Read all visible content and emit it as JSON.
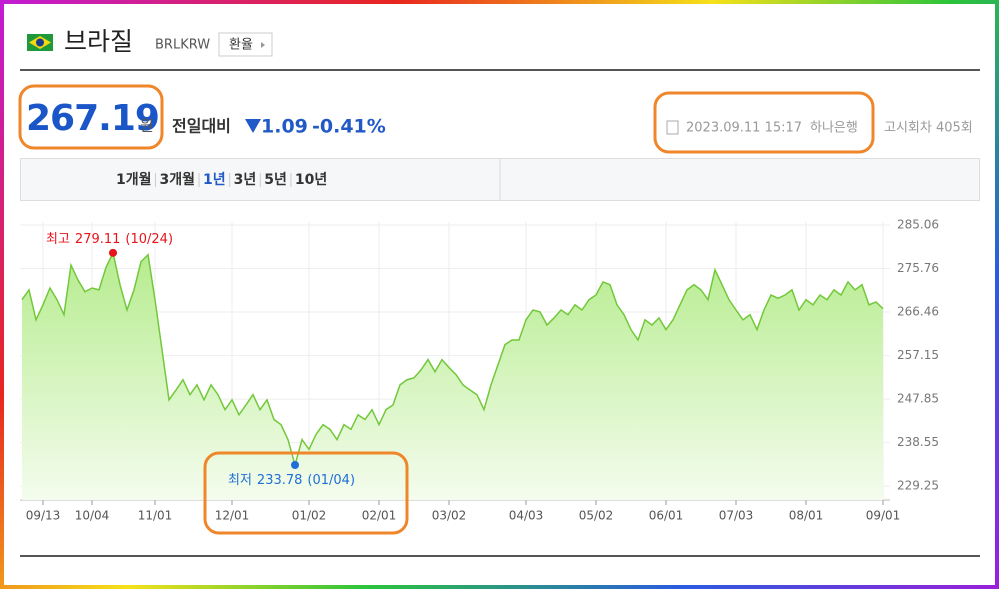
{
  "header": {
    "title": "브라질",
    "code": "BRLKRW",
    "button": "환율"
  },
  "quote": {
    "price": "267.19",
    "unit": "원",
    "compare_label": "전일대비",
    "change": "1.09",
    "change_pct": "-0.41%",
    "date": "2023.09.11 15:17",
    "bank": "하나은행",
    "round": "고시회차 405회"
  },
  "tabs": {
    "items": [
      "1개월",
      "3개월",
      "1년",
      "3년",
      "5년",
      "10년"
    ],
    "selected": 2
  },
  "chart_data": {
    "type": "line",
    "categories": [
      null,
      null,
      null,
      "09/13",
      null,
      null,
      null,
      null,
      null,
      null,
      "10/04",
      null,
      null,
      null,
      null,
      null,
      null,
      null,
      null,
      "11/01",
      null,
      null,
      null,
      null,
      null,
      null,
      null,
      null,
      null,
      null,
      "12/01",
      null,
      null,
      null,
      null,
      null,
      null,
      null,
      null,
      null,
      null,
      "01/02",
      null,
      null,
      null,
      null,
      null,
      null,
      null,
      null,
      null,
      "02/01",
      null,
      null,
      null,
      null,
      null,
      null,
      null,
      null,
      null,
      "03/02",
      null,
      null,
      null,
      null,
      null,
      null,
      null,
      null,
      null,
      null,
      "04/03",
      null,
      null,
      null,
      null,
      null,
      null,
      null,
      null,
      null,
      "05/02",
      null,
      null,
      null,
      null,
      null,
      null,
      null,
      null,
      null,
      "06/01",
      null,
      null,
      null,
      null,
      null,
      null,
      null,
      null,
      null,
      "07/03",
      null,
      null,
      null,
      null,
      null,
      null,
      null,
      null,
      null,
      "08/01",
      null,
      null,
      null,
      null,
      null,
      null,
      null,
      null,
      null,
      null,
      "09/01"
    ],
    "series": [
      {
        "color": "#72c83a",
        "values": [
          269.1,
          271.2,
          264.8,
          268.0,
          271.6,
          269.1,
          265.9,
          276.5,
          273.3,
          270.8,
          271.6,
          271.2,
          276.0,
          279.11,
          272.3,
          266.9,
          271.2,
          277.2,
          278.7,
          269.1,
          258.4,
          247.7,
          249.8,
          252.0,
          248.8,
          250.9,
          247.7,
          250.9,
          248.8,
          245.6,
          247.7,
          244.5,
          246.6,
          248.8,
          245.6,
          247.7,
          243.5,
          242.4,
          239.2,
          233.78,
          239.2,
          237.1,
          240.3,
          242.4,
          241.4,
          239.2,
          242.4,
          241.4,
          244.5,
          243.5,
          245.6,
          242.4,
          245.6,
          246.6,
          250.9,
          252.0,
          252.4,
          254.1,
          256.3,
          253.7,
          256.3,
          254.6,
          253.1,
          250.9,
          249.8,
          248.8,
          245.6,
          250.9,
          255.2,
          259.5,
          260.5,
          260.5,
          264.8,
          266.9,
          266.5,
          263.7,
          265.2,
          266.9,
          265.9,
          268.0,
          266.9,
          269.1,
          270.1,
          272.9,
          272.3,
          268.0,
          265.9,
          262.7,
          260.5,
          264.8,
          263.7,
          265.2,
          262.7,
          264.8,
          268.0,
          271.2,
          272.3,
          271.2,
          269.1,
          275.5,
          272.3,
          269.1,
          266.9,
          264.8,
          265.9,
          262.7,
          266.9,
          270.1,
          269.4,
          270.1,
          271.2,
          266.9,
          269.1,
          268.0,
          270.1,
          269.1,
          271.2,
          270.1,
          272.9,
          271.2,
          272.3,
          268.0,
          268.6,
          267.19
        ]
      }
    ],
    "ylim": [
      226.3,
      285.7
    ],
    "yticks": [
      285.06,
      275.76,
      266.46,
      257.15,
      247.85,
      238.55,
      229.25
    ],
    "grid": true,
    "annotations": [
      {
        "text": "최고",
        "value": 279.11,
        "date": "(10/24)",
        "color": "#e8141b",
        "index": 13
      },
      {
        "text": "최저",
        "value": 233.78,
        "date": "(01/04)",
        "color": "#1f6fd6",
        "index": 39
      }
    ]
  }
}
